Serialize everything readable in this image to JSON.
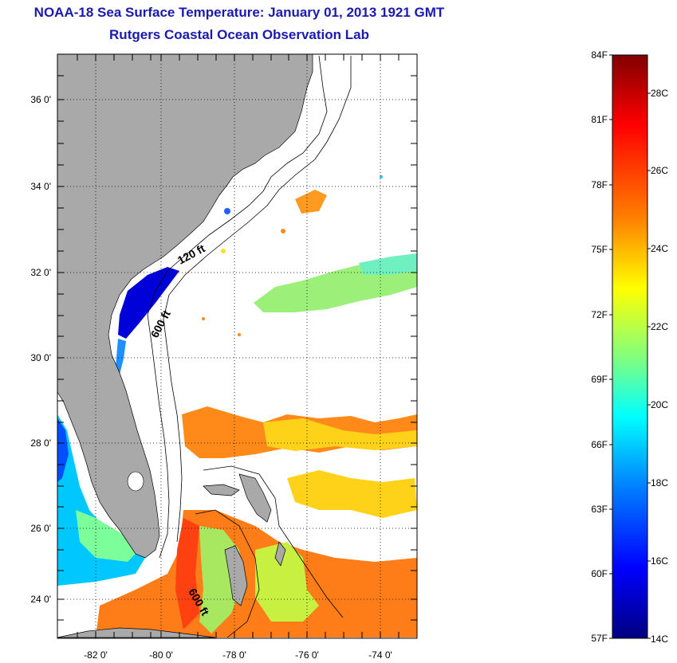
{
  "header": {
    "title": "NOAA-18 Sea Surface Temperature:  January 01, 2013 1921 GMT",
    "subtitle": "Rutgers Coastal Ocean Observation Lab"
  },
  "map": {
    "lon_range": [
      -83,
      -73
    ],
    "lat_range": [
      23,
      37
    ],
    "lon_ticks": [
      "-82 0'",
      "-80 0'",
      "-78 0'",
      "-76 0'",
      "-74 0'"
    ],
    "lat_ticks": [
      "36 0'",
      "34 0'",
      "32 0'",
      "30 0'",
      "28 0'",
      "26 0'",
      "24 0'"
    ],
    "contour_labels": [
      "120 ft",
      "600 ft",
      "600 ft"
    ],
    "land_color": "#a9a9a9",
    "nodata_color": "#ffffff"
  },
  "colorbar": {
    "fahrenheit_labels": [
      "84F",
      "81F",
      "78F",
      "75F",
      "72F",
      "69F",
      "66F",
      "63F",
      "60F",
      "57F"
    ],
    "celsius_labels": [
      "28C",
      "26C",
      "24C",
      "22C",
      "20C",
      "18C",
      "16C",
      "14C"
    ],
    "colors": [
      "#800000",
      "#ff0000",
      "#ff8000",
      "#ffff00",
      "#80ff80",
      "#00ffff",
      "#0080ff",
      "#0000ff",
      "#000080"
    ]
  }
}
